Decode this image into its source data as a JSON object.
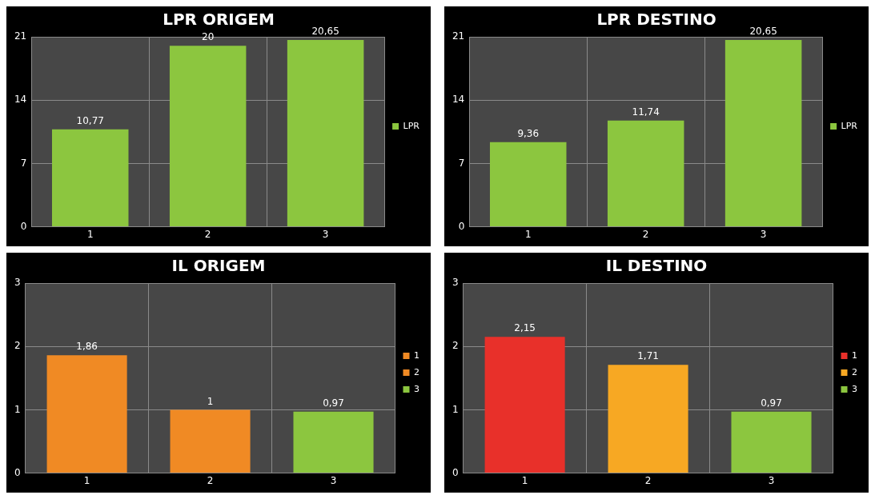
{
  "chart_data": [
    {
      "type": "bar",
      "title": "LPR ORIGEM",
      "categories": [
        "1",
        "2",
        "3"
      ],
      "series": [
        {
          "name": "LPR",
          "color": "#8cc63f",
          "values": [
            10.77,
            20,
            20.65
          ],
          "value_labels": [
            "10,77",
            "20",
            "20,65"
          ]
        }
      ],
      "ylim": [
        0,
        21
      ],
      "yticks": [
        0,
        7,
        14,
        21
      ],
      "grid": true,
      "legend": "right"
    },
    {
      "type": "bar",
      "title": "LPR DESTINO",
      "categories": [
        "1",
        "2",
        "3"
      ],
      "series": [
        {
          "name": "LPR",
          "color": "#8cc63f",
          "values": [
            9.36,
            11.74,
            20.65
          ],
          "value_labels": [
            "9,36",
            "11,74",
            "20,65"
          ]
        }
      ],
      "ylim": [
        0,
        21
      ],
      "yticks": [
        0,
        7,
        14,
        21
      ],
      "grid": true,
      "legend": "right"
    },
    {
      "type": "bar",
      "title": "IL ORIGEM",
      "categories": [
        "1",
        "2",
        "3"
      ],
      "series": [
        {
          "name": "1",
          "color": "#f08a24",
          "values": [
            1.86,
            null,
            null
          ],
          "value_labels": [
            "1,86",
            null,
            null
          ]
        },
        {
          "name": "2",
          "color": "#f08a24",
          "values": [
            null,
            1,
            null
          ],
          "value_labels": [
            null,
            "1",
            null
          ]
        },
        {
          "name": "3",
          "color": "#8cc63f",
          "values": [
            null,
            null,
            0.97
          ],
          "value_labels": [
            null,
            null,
            "0,97"
          ]
        }
      ],
      "ylim": [
        0,
        3
      ],
      "yticks": [
        0,
        1,
        2,
        3
      ],
      "grid": true,
      "legend": "right"
    },
    {
      "type": "bar",
      "title": "IL DESTINO",
      "categories": [
        "1",
        "2",
        "3"
      ],
      "series": [
        {
          "name": "1",
          "color": "#e8302a",
          "values": [
            2.15,
            null,
            null
          ],
          "value_labels": [
            "2,15",
            null,
            null
          ]
        },
        {
          "name": "2",
          "color": "#f7a823",
          "values": [
            null,
            1.71,
            null
          ],
          "value_labels": [
            null,
            "1,71",
            null
          ]
        },
        {
          "name": "3",
          "color": "#8cc63f",
          "values": [
            null,
            null,
            0.97
          ],
          "value_labels": [
            null,
            null,
            "0,97"
          ]
        }
      ],
      "ylim": [
        0,
        3
      ],
      "yticks": [
        0,
        1,
        2,
        3
      ],
      "grid": true,
      "legend": "right"
    }
  ]
}
